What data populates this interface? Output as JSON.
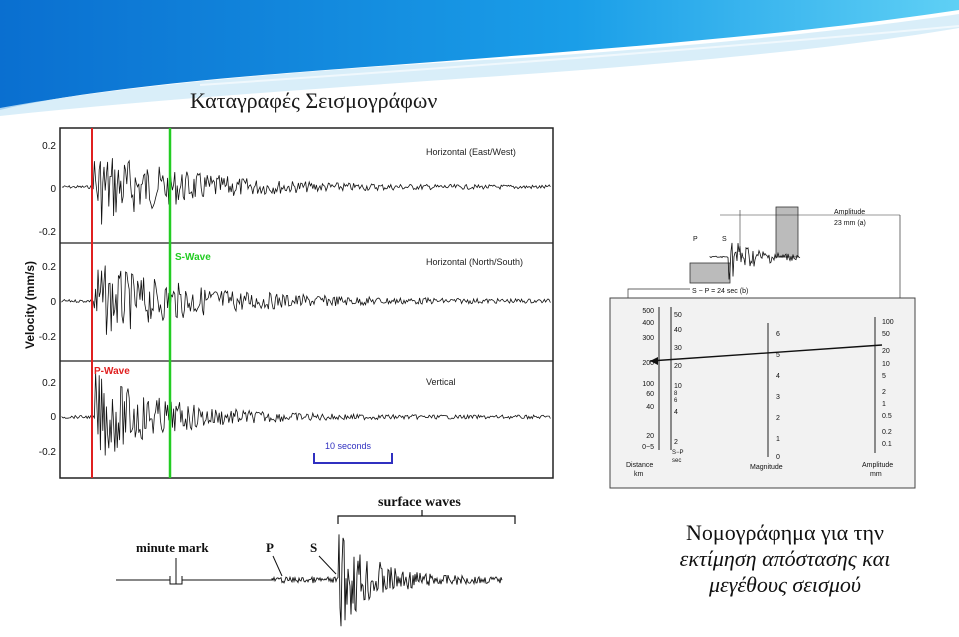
{
  "slide": {
    "title": "Καταγραφές Σεισμογράφων",
    "caption_lines": [
      "Νομογράφημα για την",
      "εκτίμηση απόστασης και",
      "μεγέθους σεισμού"
    ]
  },
  "seismogram": {
    "y_axis_label": "Velocity (mm/s)",
    "ticks": [
      "0.2",
      "0",
      "-0.2"
    ],
    "channels": [
      "Horizontal (East/West)",
      "Horizontal (North/South)",
      "Vertical"
    ],
    "p_wave_label": "P-Wave",
    "s_wave_label": "S-Wave",
    "scale_label": "10 seconds",
    "colors": {
      "p_wave": "#e02020",
      "s_wave": "#22cc22",
      "scale": "#3030c0"
    }
  },
  "nomogram": {
    "amplitude_label": "Amplitude",
    "amplitude_value": "23 mm (a)",
    "sp_label": "S − P = 24 sec (b)",
    "p_marker": "P",
    "s_marker": "S",
    "distance_ticks": [
      "500",
      "400",
      "300",
      "200",
      "100",
      "60",
      "40",
      "20",
      "0−5"
    ],
    "distance_label": "Distance",
    "distance_unit": "km",
    "sp_ticks": [
      "50",
      "40",
      "30",
      "20",
      "10",
      "8",
      "6",
      "4",
      "2"
    ],
    "sp_axis_label": "S−P",
    "sp_unit": "sec",
    "magnitude_ticks": [
      "6",
      "5",
      "4",
      "3",
      "2",
      "1",
      "0"
    ],
    "magnitude_label": "Magnitude",
    "amplitude_ticks": [
      "100",
      "50",
      "20",
      "10",
      "5",
      "2",
      "1",
      "0.5",
      "0.2",
      "0.1"
    ],
    "amplitude_axis_label": "Amplitude",
    "amplitude_unit": "mm"
  },
  "surface": {
    "header": "surface waves",
    "minute_mark": "minute mark",
    "p": "P",
    "s": "S"
  }
}
